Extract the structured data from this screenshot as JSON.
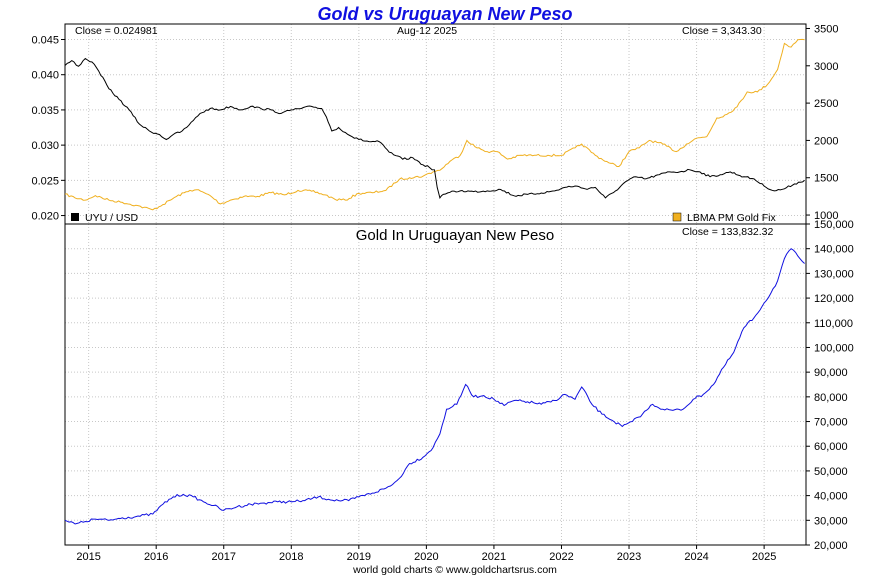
{
  "title": "Gold vs Uruguayan New Peso",
  "footer": "world gold charts © www.goldchartsrus.com",
  "colors": {
    "title": "#1010e0",
    "uyu_line": "#000000",
    "gold_line": "#f0b020",
    "gold_uyu_line": "#1010e0",
    "grid": "#c8c8c8"
  },
  "chart_data": [
    {
      "type": "line",
      "panel": "top",
      "date_label": "Aug-12  2025",
      "close_left": "Close = 0.024981",
      "close_right": "Close = 3,343.30",
      "x_ticks": [
        "2015",
        "2016",
        "2017",
        "2018",
        "2019",
        "2020",
        "2021",
        "2022",
        "2023",
        "2024",
        "2025"
      ],
      "xlim": [
        2014.65,
        2025.62
      ],
      "y_left": {
        "ylim": [
          0.0188,
          0.0472
        ],
        "ticks": [
          "0.020",
          "0.025",
          "0.030",
          "0.035",
          "0.040",
          "0.045"
        ],
        "values": [
          0.02,
          0.025,
          0.03,
          0.035,
          0.04,
          0.045
        ]
      },
      "y_right": {
        "ylim": [
          880,
          3560
        ],
        "ticks": [
          "1000",
          "1500",
          "2000",
          "2500",
          "3000",
          "3500"
        ],
        "values": [
          1000,
          1500,
          2000,
          2500,
          3000,
          3500
        ]
      },
      "series": [
        {
          "name": "UYU / USD",
          "axis": "left",
          "x": [
            2014.65,
            2014.75,
            2014.85,
            2014.95,
            2015.05,
            2015.15,
            2015.3,
            2015.45,
            2015.6,
            2015.75,
            2015.9,
            2016.05,
            2016.15,
            2016.25,
            2016.35,
            2016.45,
            2016.55,
            2016.65,
            2016.8,
            2016.95,
            2017.1,
            2017.25,
            2017.4,
            2017.55,
            2017.7,
            2017.85,
            2018.0,
            2018.15,
            2018.3,
            2018.45,
            2018.52,
            2018.6,
            2018.7,
            2018.8,
            2018.9,
            2019.0,
            2019.15,
            2019.3,
            2019.45,
            2019.55,
            2019.65,
            2019.8,
            2019.95,
            2020.05,
            2020.12,
            2020.16,
            2020.2,
            2020.25,
            2020.35,
            2020.5,
            2020.7,
            2020.9,
            2021.1,
            2021.3,
            2021.5,
            2021.7,
            2021.9,
            2022.05,
            2022.2,
            2022.35,
            2022.5,
            2022.65,
            2022.8,
            2022.95,
            2023.1,
            2023.25,
            2023.45,
            2023.6,
            2023.75,
            2023.9,
            2024.05,
            2024.2,
            2024.35,
            2024.5,
            2024.7,
            2024.85,
            2025.0,
            2025.15,
            2025.3,
            2025.45,
            2025.6
          ],
          "y": [
            0.0413,
            0.042,
            0.0412,
            0.0423,
            0.0418,
            0.0405,
            0.038,
            0.0365,
            0.035,
            0.033,
            0.032,
            0.0315,
            0.0308,
            0.0315,
            0.0318,
            0.0325,
            0.0335,
            0.0345,
            0.0352,
            0.035,
            0.0355,
            0.035,
            0.0355,
            0.0352,
            0.035,
            0.0345,
            0.035,
            0.0352,
            0.0355,
            0.0352,
            0.034,
            0.032,
            0.0325,
            0.0318,
            0.0312,
            0.0308,
            0.0305,
            0.0305,
            0.029,
            0.0285,
            0.028,
            0.0282,
            0.0272,
            0.0268,
            0.0265,
            0.024,
            0.0225,
            0.023,
            0.0233,
            0.0235,
            0.0234,
            0.0235,
            0.0237,
            0.0228,
            0.023,
            0.0232,
            0.0235,
            0.024,
            0.0242,
            0.0238,
            0.024,
            0.0225,
            0.0235,
            0.0248,
            0.0255,
            0.0252,
            0.0258,
            0.0262,
            0.0262,
            0.0265,
            0.0262,
            0.0255,
            0.0258,
            0.0262,
            0.0255,
            0.0252,
            0.0242,
            0.0235,
            0.0238,
            0.0245,
            0.025
          ]
        },
        {
          "name": "LBMA PM Gold Fix",
          "axis": "right",
          "x": [
            2014.65,
            2014.8,
            2014.95,
            2015.1,
            2015.3,
            2015.5,
            2015.7,
            2015.95,
            2016.1,
            2016.3,
            2016.5,
            2016.6,
            2016.8,
            2016.95,
            2017.1,
            2017.3,
            2017.5,
            2017.7,
            2017.9,
            2018.1,
            2018.3,
            2018.5,
            2018.65,
            2018.8,
            2019.0,
            2019.2,
            2019.4,
            2019.6,
            2019.75,
            2019.95,
            2020.1,
            2020.2,
            2020.35,
            2020.5,
            2020.6,
            2020.75,
            2020.9,
            2021.05,
            2021.2,
            2021.4,
            2021.6,
            2021.8,
            2022.0,
            2022.2,
            2022.3,
            2022.5,
            2022.7,
            2022.85,
            2023.0,
            2023.15,
            2023.3,
            2023.5,
            2023.7,
            2023.85,
            2024.0,
            2024.15,
            2024.3,
            2024.45,
            2024.6,
            2024.75,
            2024.9,
            2025.05,
            2025.2,
            2025.3,
            2025.4,
            2025.5,
            2025.6
          ],
          "y": [
            1280,
            1230,
            1200,
            1260,
            1200,
            1170,
            1130,
            1070,
            1140,
            1250,
            1330,
            1340,
            1260,
            1150,
            1200,
            1250,
            1250,
            1300,
            1270,
            1330,
            1320,
            1270,
            1210,
            1200,
            1290,
            1300,
            1330,
            1480,
            1500,
            1520,
            1580,
            1600,
            1720,
            1800,
            2000,
            1900,
            1850,
            1850,
            1750,
            1800,
            1800,
            1800,
            1800,
            1900,
            1950,
            1800,
            1700,
            1650,
            1850,
            1900,
            2000,
            1950,
            1850,
            1950,
            2030,
            2050,
            2300,
            2350,
            2450,
            2650,
            2650,
            2750,
            2950,
            3300,
            3250,
            3350,
            3350
          ]
        }
      ]
    },
    {
      "type": "line",
      "panel": "bottom",
      "title": "Gold In Uruguayan New Peso",
      "close_right": "Close = 133,832.32",
      "xlim": [
        2014.65,
        2025.62
      ],
      "ylim": [
        20000,
        150000
      ],
      "y_ticks": [
        "20,000",
        "30,000",
        "40,000",
        "50,000",
        "60,000",
        "70,000",
        "80,000",
        "90,000",
        "100,000",
        "110,000",
        "120,000",
        "130,000",
        "140,000",
        "150,000"
      ],
      "y_tick_values": [
        20000,
        30000,
        40000,
        50000,
        60000,
        70000,
        80000,
        90000,
        100000,
        110000,
        120000,
        130000,
        140000,
        150000
      ],
      "series": [
        {
          "name": "Gold In Uruguayan New Peso",
          "x": [
            2014.65,
            2014.8,
            2014.95,
            2015.1,
            2015.3,
            2015.5,
            2015.7,
            2015.95,
            2016.1,
            2016.25,
            2016.4,
            2016.55,
            2016.7,
            2016.85,
            2017.0,
            2017.2,
            2017.4,
            2017.6,
            2017.8,
            2018.0,
            2018.2,
            2018.4,
            2018.55,
            2018.7,
            2018.85,
            2019.0,
            2019.2,
            2019.4,
            2019.5,
            2019.6,
            2019.75,
            2019.95,
            2020.1,
            2020.2,
            2020.3,
            2020.45,
            2020.58,
            2020.7,
            2020.85,
            2021.0,
            2021.15,
            2021.3,
            2021.5,
            2021.7,
            2021.9,
            2022.05,
            2022.2,
            2022.3,
            2022.45,
            2022.6,
            2022.75,
            2022.9,
            2023.05,
            2023.2,
            2023.35,
            2023.5,
            2023.65,
            2023.8,
            2023.95,
            2024.1,
            2024.25,
            2024.4,
            2024.55,
            2024.7,
            2024.85,
            2025.0,
            2025.1,
            2025.2,
            2025.3,
            2025.4,
            2025.5,
            2025.6
          ],
          "y": [
            30000,
            28500,
            29500,
            30500,
            30000,
            31000,
            31500,
            32500,
            36500,
            39500,
            40500,
            39500,
            37500,
            36000,
            34000,
            35500,
            36500,
            37000,
            37500,
            37500,
            38000,
            39500,
            38500,
            38000,
            38000,
            39500,
            41000,
            43000,
            44500,
            47000,
            53000,
            55500,
            59500,
            65000,
            75000,
            77000,
            85000,
            80000,
            80500,
            79000,
            76500,
            78500,
            78000,
            77000,
            78500,
            81000,
            79000,
            84000,
            77000,
            73000,
            70500,
            68000,
            70000,
            73000,
            77000,
            75000,
            74500,
            75000,
            79000,
            81000,
            85000,
            92000,
            98000,
            108000,
            112000,
            118000,
            122000,
            127000,
            136000,
            140000,
            137000,
            134000
          ]
        }
      ]
    }
  ]
}
